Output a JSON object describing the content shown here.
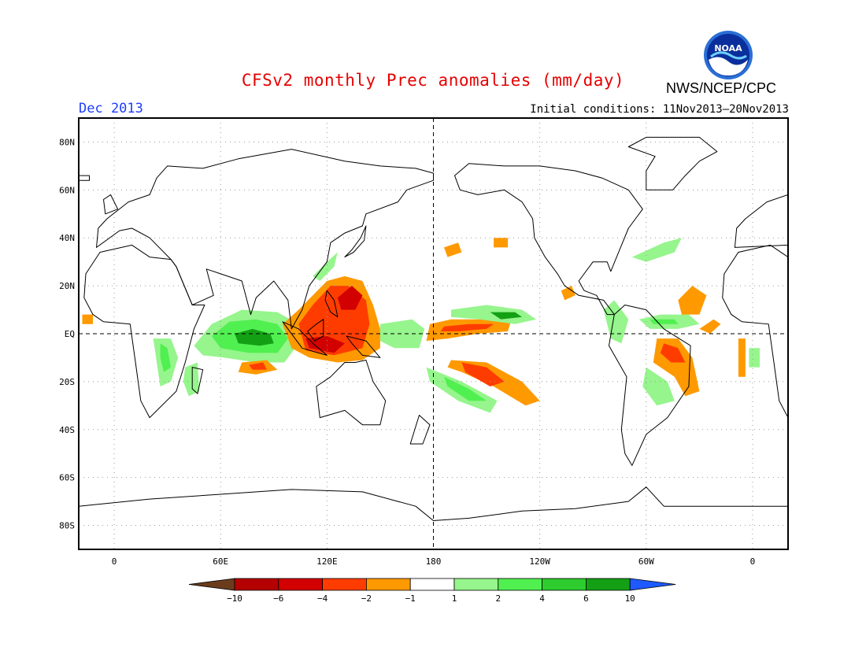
{
  "header": {
    "title": "CFSv2 monthly Prec anomalies (mm/day)",
    "org": "NWS/NCEP/CPC",
    "month": "Dec 2013",
    "initial_conditions": "Initial conditions: 11Nov2013–20Nov2013",
    "logo_text": "NOAA"
  },
  "map": {
    "lon_range": [
      -20,
      380
    ],
    "lat_range": [
      -90,
      90
    ],
    "lat_labels": [
      "80N",
      "60N",
      "40N",
      "20N",
      "EQ",
      "20S",
      "40S",
      "60S",
      "80S"
    ],
    "lat_values": [
      80,
      60,
      40,
      20,
      0,
      -20,
      -40,
      -60,
      -80
    ],
    "lon_labels": [
      "0",
      "60E",
      "120E",
      "180",
      "120W",
      "60W",
      "0"
    ],
    "lon_values": [
      0,
      60,
      120,
      180,
      240,
      300,
      360
    ],
    "colorbar": {
      "labels": [
        "−10",
        "−6",
        "−4",
        "−2",
        "−1",
        "1",
        "2",
        "4",
        "6",
        "10"
      ],
      "colors": [
        "#b40000",
        "#d20000",
        "#ff3c00",
        "#ff9900",
        "#ffffff",
        "#96f58c",
        "#50f050",
        "#2ecc2e",
        "#14a014"
      ],
      "low_color": "#6b3c1c",
      "high_color": "#1e5aff"
    },
    "colors": {
      "land_line": "#000000",
      "neg_1": "#ff9900",
      "neg_2": "#ff3c00",
      "neg_3": "#d20000",
      "pos_1": "#96f58c",
      "pos_2": "#50f050",
      "pos_3": "#14a014"
    }
  }
}
